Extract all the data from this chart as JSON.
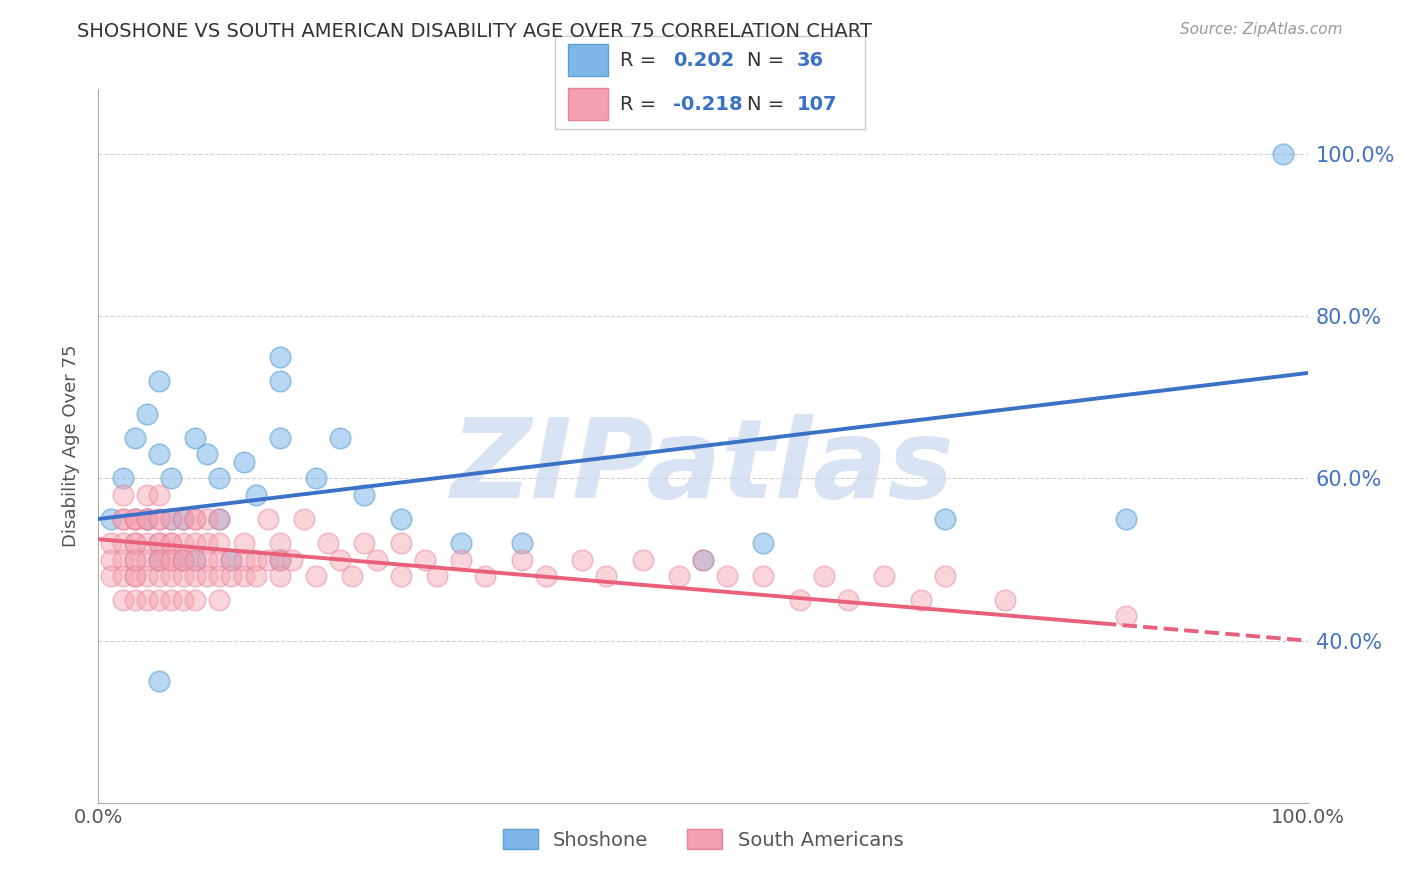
{
  "title": "SHOSHONE VS SOUTH AMERICAN DISABILITY AGE OVER 75 CORRELATION CHART",
  "source_text": "Source: ZipAtlas.com",
  "ylabel": "Disability Age Over 75",
  "watermark": "ZIPatlas",
  "xlim": [
    0,
    100
  ],
  "ylim": [
    20,
    108
  ],
  "y_ticks": [
    40,
    60,
    80,
    100
  ],
  "shoshone_color": "#7EB6E8",
  "shoshone_edge_color": "#5B9FD4",
  "south_american_color": "#F4A0B0",
  "south_american_edge_color": "#E8809A",
  "shoshone_line_color": "#3B72C8",
  "south_american_line_color": "#E8607A",
  "shoshone_R": "0.202",
  "shoshone_N": "36",
  "south_american_R": "-0.218",
  "south_american_N": "107",
  "background_color": "#FFFFFF",
  "grid_color": "#CCCCCC",
  "title_color": "#333333",
  "axis_color": "#AAAAAA",
  "tick_label_color": "#555555",
  "right_axis_color": "#4472C4",
  "watermark_color": "#C8D8EE",
  "legend_border_color": "#CCCCCC",
  "shoshone_line_y0": 55.0,
  "shoshone_line_y100": 73.0,
  "sa_line_y0": 52.5,
  "sa_line_y100": 40.0
}
